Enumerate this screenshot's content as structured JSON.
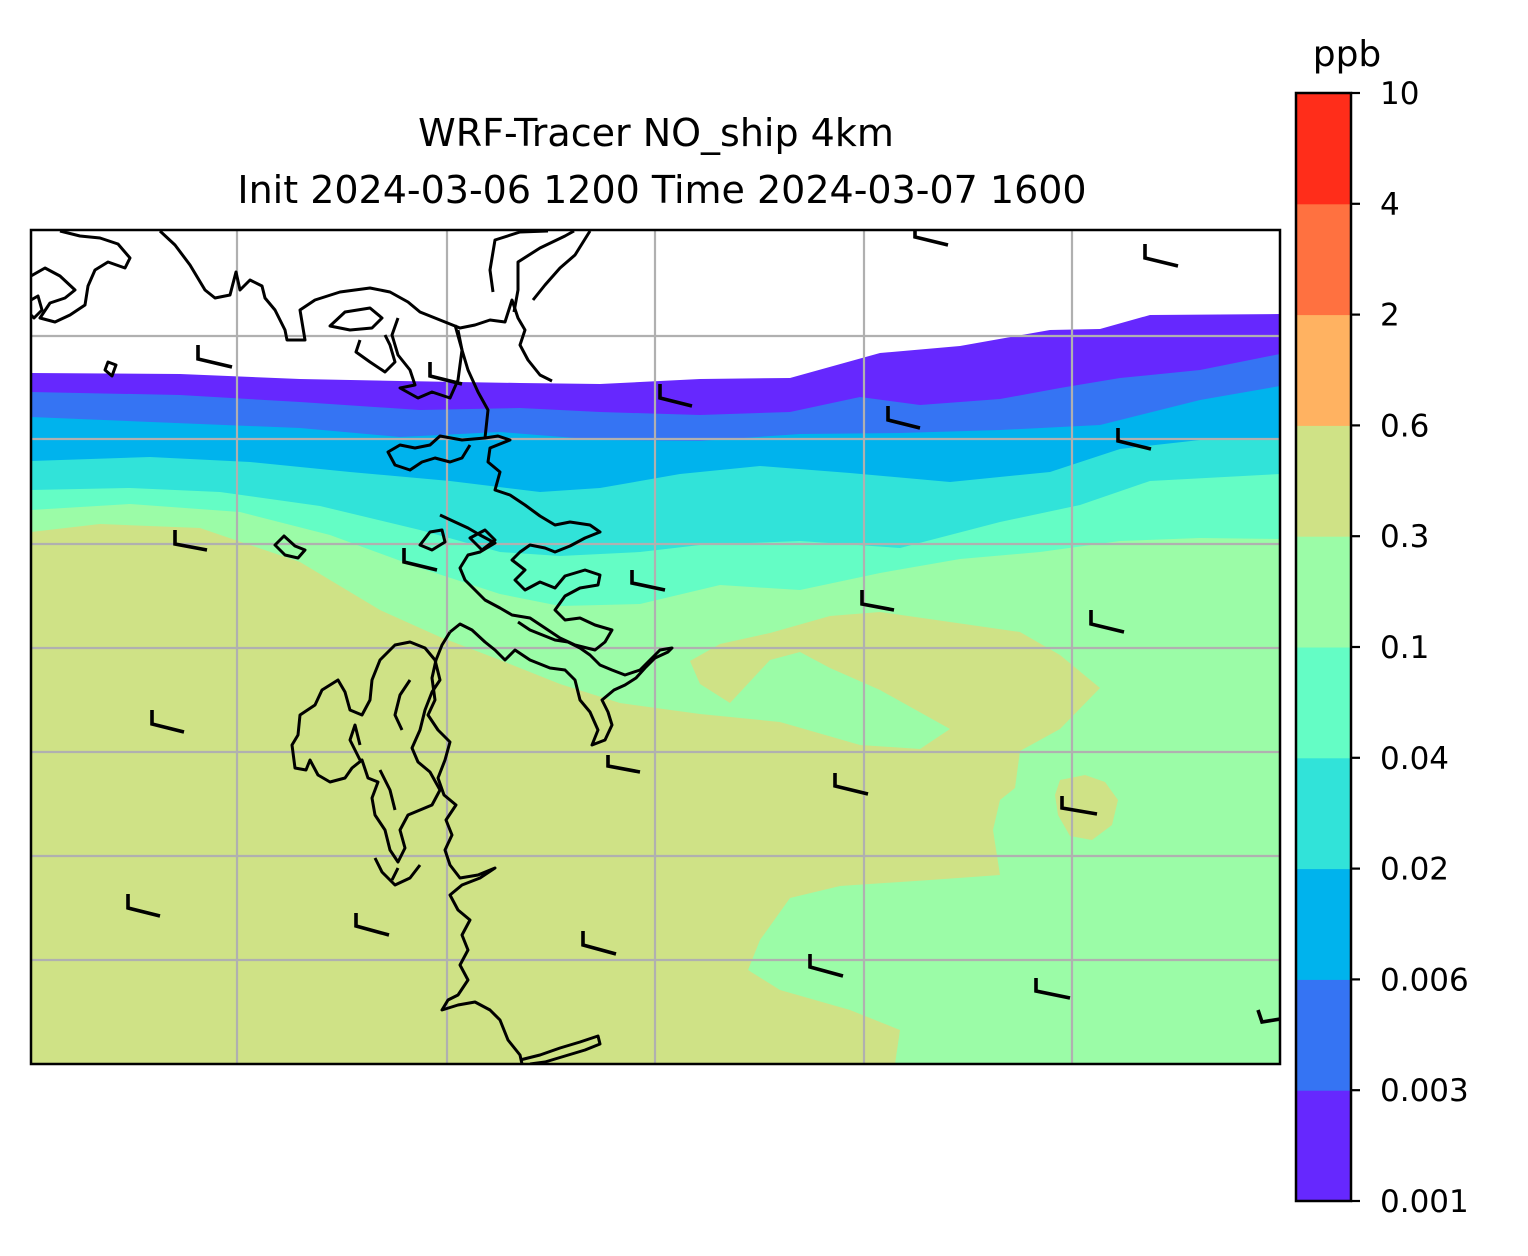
{
  "title": {
    "line1": "WRF-Tracer NO_ship 4km",
    "line2": "Init 2024-03-06 1200 Time 2024-03-07 1600"
  },
  "colorbar": {
    "unit": "ppb",
    "levels": [
      "0.001",
      "0.003",
      "0.006",
      "0.02",
      "0.04",
      "0.1",
      "0.3",
      "0.6",
      "2",
      "4",
      "10"
    ],
    "colors": [
      "#6628fe",
      "#3574f3",
      "#00b3ed",
      "#31e3d9",
      "#64fdc5",
      "#9bfca7",
      "#cfe286",
      "#ffb261",
      "#ff7140",
      "#ff2d1a"
    ]
  },
  "map": {
    "field": "NO_ship",
    "gridlines": true,
    "no_data_color": "#ffffff",
    "coastline_color": "#000000",
    "gridline_color": "#b0b0b0",
    "wind_barb_color": "#000000"
  }
}
